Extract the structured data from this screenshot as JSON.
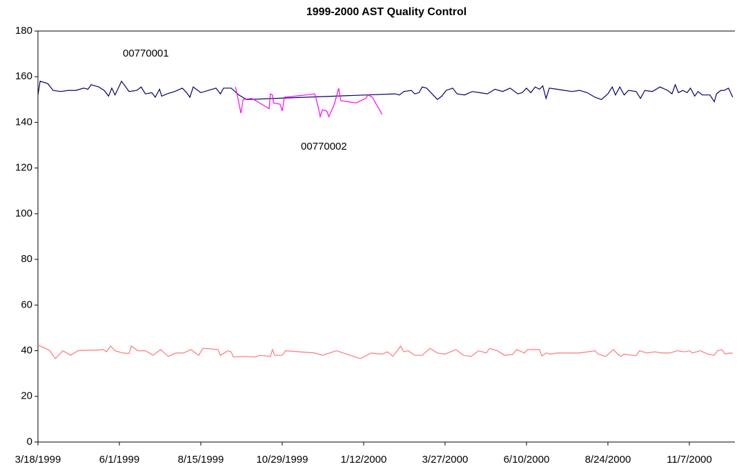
{
  "chart_data": {
    "type": "line",
    "title": "1999-2000 AST Quality Control",
    "xlim": [
      "1999-03-18",
      "2000-12-19"
    ],
    "xticks": [
      {
        "value": "1999-03-18",
        "label": "3/18/1999"
      },
      {
        "value": "1999-06-01",
        "label": "6/1/1999"
      },
      {
        "value": "1999-08-15",
        "label": "8/15/1999"
      },
      {
        "value": "1999-10-29",
        "label": "10/29/1999"
      },
      {
        "value": "2000-01-12",
        "label": "1/12/2000"
      },
      {
        "value": "2000-03-27",
        "label": "3/27/2000"
      },
      {
        "value": "2000-06-10",
        "label": "6/10/2000"
      },
      {
        "value": "2000-08-24",
        "label": "8/24/2000"
      },
      {
        "value": "2000-11-07",
        "label": "11/7/2000"
      }
    ],
    "ylim": [
      0,
      180
    ],
    "yticks": [
      0,
      20,
      40,
      60,
      80,
      100,
      120,
      140,
      160,
      180
    ],
    "grid": false,
    "series": [
      {
        "name": "00770001",
        "color": "#000066",
        "x": [
          "1999-03-18",
          "1999-03-20",
          "1999-03-27",
          "1999-04-01",
          "1999-04-08",
          "1999-04-15",
          "1999-04-22",
          "1999-04-29",
          "1999-05-03",
          "1999-05-06",
          "1999-05-13",
          "1999-05-18",
          "1999-05-22",
          "1999-05-25",
          "1999-05-28",
          "1999-06-03",
          "1999-06-10",
          "1999-06-17",
          "1999-06-21",
          "1999-06-25",
          "1999-07-01",
          "1999-07-04",
          "1999-07-08",
          "1999-07-10",
          "1999-07-15",
          "1999-07-22",
          "1999-07-29",
          "1999-08-02",
          "1999-08-05",
          "1999-08-08",
          "1999-08-15",
          "1999-08-22",
          "1999-08-29",
          "1999-09-02",
          "1999-09-05",
          "1999-09-12",
          "1999-09-19",
          "1999-09-26",
          "2000-02-10",
          "2000-02-14",
          "2000-02-18",
          "2000-02-25",
          "2000-02-28",
          "2000-03-03",
          "2000-03-06",
          "2000-03-10",
          "2000-03-14",
          "2000-03-20",
          "2000-03-24",
          "2000-03-28",
          "2000-04-03",
          "2000-04-07",
          "2000-04-14",
          "2000-04-21",
          "2000-04-28",
          "2000-05-05",
          "2000-05-12",
          "2000-05-19",
          "2000-05-26",
          "2000-06-02",
          "2000-06-06",
          "2000-06-10",
          "2000-06-14",
          "2000-06-18",
          "2000-06-22",
          "2000-06-25",
          "2000-06-28",
          "2000-07-01",
          "2000-07-08",
          "2000-07-15",
          "2000-07-22",
          "2000-07-29",
          "2000-08-05",
          "2000-08-12",
          "2000-08-18",
          "2000-08-24",
          "2000-08-28",
          "2000-08-31",
          "2000-09-04",
          "2000-09-08",
          "2000-09-12",
          "2000-09-19",
          "2000-09-23",
          "2000-09-27",
          "2000-10-04",
          "2000-10-11",
          "2000-10-18",
          "2000-10-22",
          "2000-10-25",
          "2000-10-28",
          "2000-11-01",
          "2000-11-05",
          "2000-11-08",
          "2000-11-12",
          "2000-11-15",
          "2000-11-19",
          "2000-11-26",
          "2000-11-30",
          "2000-12-02",
          "2000-12-06",
          "2000-12-09",
          "2000-12-13",
          "2000-12-17"
        ],
        "values": [
          152,
          158,
          157,
          154,
          153.5,
          154,
          154,
          155,
          154.5,
          156.5,
          155.5,
          154,
          151.5,
          155,
          152,
          158,
          153.5,
          154,
          155.5,
          152.5,
          153,
          151,
          154.5,
          151.5,
          152.5,
          153.5,
          155,
          153,
          151,
          155.5,
          153,
          154,
          155,
          152.5,
          155,
          155,
          152,
          150,
          152.5,
          152,
          153.5,
          154,
          152.5,
          153,
          155.5,
          155,
          153,
          150,
          151.5,
          154,
          155,
          152.5,
          152,
          153.5,
          153,
          152.5,
          154.5,
          153.5,
          155,
          152.5,
          153,
          155,
          153,
          155.5,
          154.5,
          156,
          150.5,
          155,
          154.5,
          154,
          153.5,
          154,
          153,
          151,
          150,
          152.5,
          155.5,
          152,
          155.5,
          152,
          154,
          153.5,
          150.5,
          154,
          153.5,
          155.5,
          154,
          152.5,
          156.5,
          153,
          154,
          153,
          155,
          151.5,
          153.5,
          152,
          152,
          149,
          152.5,
          154,
          154,
          155,
          151
        ]
      },
      {
        "name": "00770002",
        "color": "#ff00ff",
        "x": [
          "1999-09-16",
          "1999-09-21",
          "1999-09-23",
          "1999-10-01",
          "1999-10-10",
          "1999-10-17",
          "1999-10-18",
          "1999-10-20",
          "1999-10-21",
          "1999-10-27",
          "1999-10-29",
          "1999-10-31",
          "1999-11-10",
          "1999-11-20",
          "1999-11-28",
          "1999-12-01",
          "1999-12-03",
          "1999-12-05",
          "1999-12-09",
          "1999-12-11",
          "1999-12-16",
          "1999-12-20",
          "1999-12-22",
          "2000-01-05",
          "2000-01-14",
          "2000-01-16",
          "2000-01-20",
          "2000-01-29"
        ],
        "values": [
          155.5,
          144,
          150,
          150.5,
          148,
          146,
          152.5,
          152,
          148.5,
          148,
          145,
          151,
          151.5,
          152,
          152.5,
          147,
          142.5,
          145.5,
          145,
          142.5,
          148,
          155,
          149.5,
          148.5,
          150.5,
          152,
          151,
          143.5
        ]
      },
      {
        "color": "#ff7777",
        "x": [
          "1999-03-18",
          "1999-03-25",
          "1999-03-29",
          "1999-04-03",
          "1999-04-10",
          "1999-04-17",
          "1999-04-24",
          "1999-05-01",
          "1999-05-10",
          "1999-05-17",
          "1999-05-20",
          "1999-05-24",
          "1999-05-28",
          "1999-06-04",
          "1999-06-10",
          "1999-06-12",
          "1999-06-18",
          "1999-06-25",
          "1999-07-02",
          "1999-07-09",
          "1999-07-16",
          "1999-07-23",
          "1999-07-30",
          "1999-08-06",
          "1999-08-13",
          "1999-08-17",
          "1999-08-24",
          "1999-08-31",
          "1999-09-02",
          "1999-09-09",
          "1999-09-12",
          "1999-09-14",
          "1999-09-24",
          "1999-10-04",
          "1999-10-08",
          "1999-10-18",
          "1999-10-20",
          "1999-10-22",
          "1999-10-29",
          "1999-11-01",
          "1999-11-28",
          "1999-12-05",
          "1999-12-18",
          "2000-01-09",
          "2000-01-19",
          "2000-01-29",
          "2000-02-03",
          "2000-02-08",
          "2000-02-15",
          "2000-02-18",
          "2000-02-22",
          "2000-02-28",
          "2000-03-06",
          "2000-03-13",
          "2000-03-20",
          "2000-03-27",
          "2000-04-06",
          "2000-04-13",
          "2000-04-20",
          "2000-04-27",
          "2000-05-04",
          "2000-05-07",
          "2000-05-14",
          "2000-05-21",
          "2000-05-28",
          "2000-06-01",
          "2000-06-08",
          "2000-06-11",
          "2000-06-22",
          "2000-06-24",
          "2000-06-28",
          "2000-07-02",
          "2000-07-08",
          "2000-07-29",
          "2000-08-12",
          "2000-08-15",
          "2000-08-22",
          "2000-08-29",
          "2000-09-02",
          "2000-09-05",
          "2000-09-08",
          "2000-09-15",
          "2000-09-19",
          "2000-09-22",
          "2000-09-29",
          "2000-10-06",
          "2000-10-13",
          "2000-10-20",
          "2000-10-27",
          "2000-11-03",
          "2000-11-07",
          "2000-11-10",
          "2000-11-17",
          "2000-11-24",
          "2000-11-30",
          "2000-12-03",
          "2000-12-07",
          "2000-12-10",
          "2000-12-14",
          "2000-12-17"
        ],
        "values": [
          42.5,
          41,
          40,
          36.5,
          40,
          38,
          40,
          40.2,
          40.2,
          40.5,
          39.5,
          42,
          40,
          39,
          38.8,
          42,
          40,
          40,
          38,
          40.5,
          37.5,
          39,
          39,
          40.5,
          38,
          41,
          40.8,
          40.5,
          38,
          40,
          39.5,
          37.2,
          37.5,
          37.2,
          38,
          37.5,
          40.5,
          38,
          38,
          40,
          39,
          38,
          40,
          36.5,
          39,
          38.5,
          39.5,
          37.5,
          42,
          39.5,
          40,
          38,
          38,
          41,
          39,
          38.5,
          40.5,
          38,
          37.5,
          40,
          39,
          41,
          40,
          38,
          38.3,
          40.5,
          39,
          40.5,
          40.5,
          37.7,
          39,
          38.5,
          39,
          39,
          40,
          38.5,
          37.5,
          40.5,
          38.5,
          37.5,
          38.5,
          38,
          37.8,
          40,
          39,
          39.5,
          39,
          39,
          40,
          39.5,
          40,
          39,
          40,
          38.5,
          38,
          40,
          40.5,
          38.5,
          39,
          38.8
        ]
      }
    ]
  }
}
